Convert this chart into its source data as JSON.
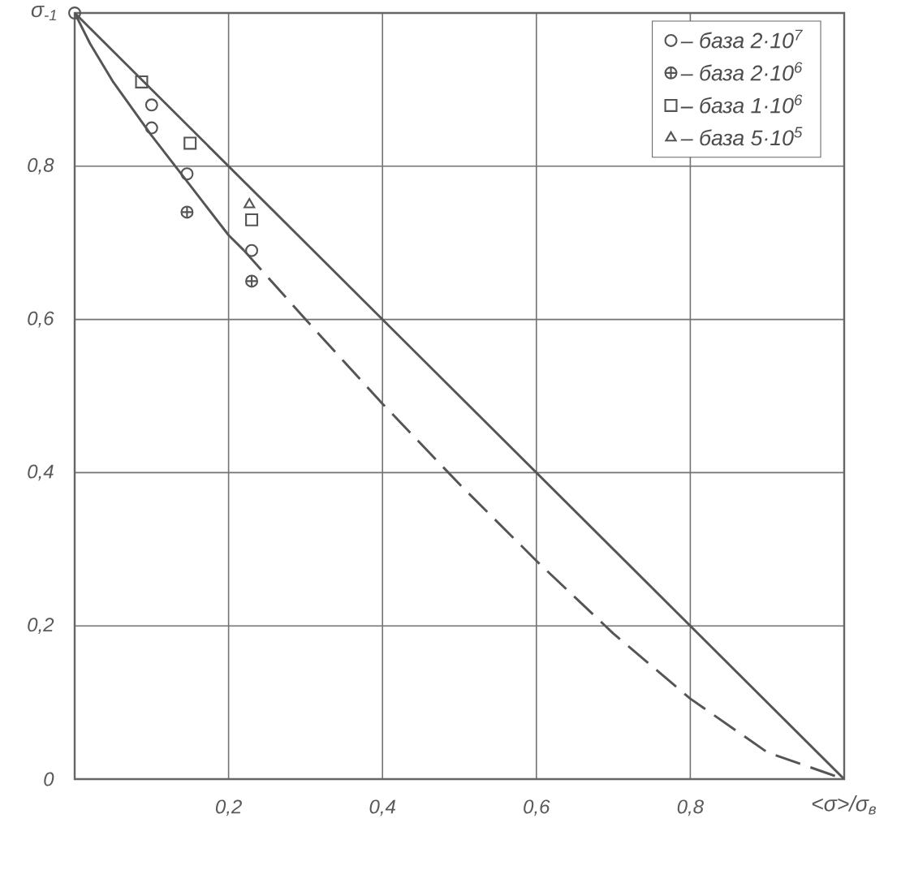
{
  "chart_data": {
    "type": "scatter",
    "xlabel": "<σ>/σ$_{в}$",
    "ylabel": "σ$_{-1}$",
    "xlim": [
      0,
      1
    ],
    "ylim": [
      0,
      1
    ],
    "xticks": [
      {
        "value": 0,
        "label": null
      },
      {
        "value": 0.2,
        "label": "0,2"
      },
      {
        "value": 0.4,
        "label": "0,4"
      },
      {
        "value": 0.6,
        "label": "0,6"
      },
      {
        "value": 0.8,
        "label": "0,8"
      },
      {
        "value": 1,
        "label": null
      }
    ],
    "yticks": [
      {
        "value": 0,
        "label": "0"
      },
      {
        "value": 0.2,
        "label": "0,2"
      },
      {
        "value": 0.4,
        "label": "0,4"
      },
      {
        "value": 0.6,
        "label": "0,6"
      },
      {
        "value": 0.8,
        "label": "0,8"
      },
      {
        "value": 1,
        "label": null
      }
    ],
    "grid": true,
    "legend": "top right",
    "series": [
      {
        "type": "line",
        "color": "#555555",
        "marker": "none",
        "line_style": "solid",
        "x": [
          0,
          1
        ],
        "values": [
          1,
          0
        ]
      },
      {
        "type": "line",
        "color": "#555555",
        "marker": "none",
        "line_style": "solid",
        "x": [
          0,
          0.02,
          0.05,
          0.1,
          0.15,
          0.2,
          0.22
        ],
        "values": [
          1,
          0.96,
          0.91,
          0.84,
          0.775,
          0.71,
          0.69
        ]
      },
      {
        "type": "line",
        "color": "#555555",
        "marker": "none",
        "line_style": "dashed",
        "x": [
          0.22,
          0.3,
          0.4,
          0.5,
          0.6,
          0.7,
          0.8,
          0.9,
          1
        ],
        "values": [
          0.69,
          0.6,
          0.49,
          0.385,
          0.285,
          0.19,
          0.105,
          0.035,
          0
        ]
      },
      {
        "name": "– база 2·10$^{7}$",
        "color": "#555555",
        "marker": "circle",
        "x": [
          0,
          0.1,
          0.1,
          0.146,
          0.23
        ],
        "values": [
          1,
          0.88,
          0.85,
          0.79,
          0.69
        ]
      },
      {
        "name": "– база 2·10$^{6}$",
        "color": "#555555",
        "marker": "cross",
        "x": [
          0.146,
          0.23
        ],
        "values": [
          0.74,
          0.65
        ]
      },
      {
        "name": "– база 1·10$^{6}$",
        "color": "#555555",
        "marker": "square",
        "x": [
          0.087,
          0.15,
          0.23
        ],
        "values": [
          0.91,
          0.83,
          0.73
        ]
      },
      {
        "name": "– база 5·10$^{5}$",
        "color": "#555555",
        "marker": "triangle",
        "x": [
          0.227
        ],
        "values": [
          0.75
        ]
      }
    ]
  }
}
